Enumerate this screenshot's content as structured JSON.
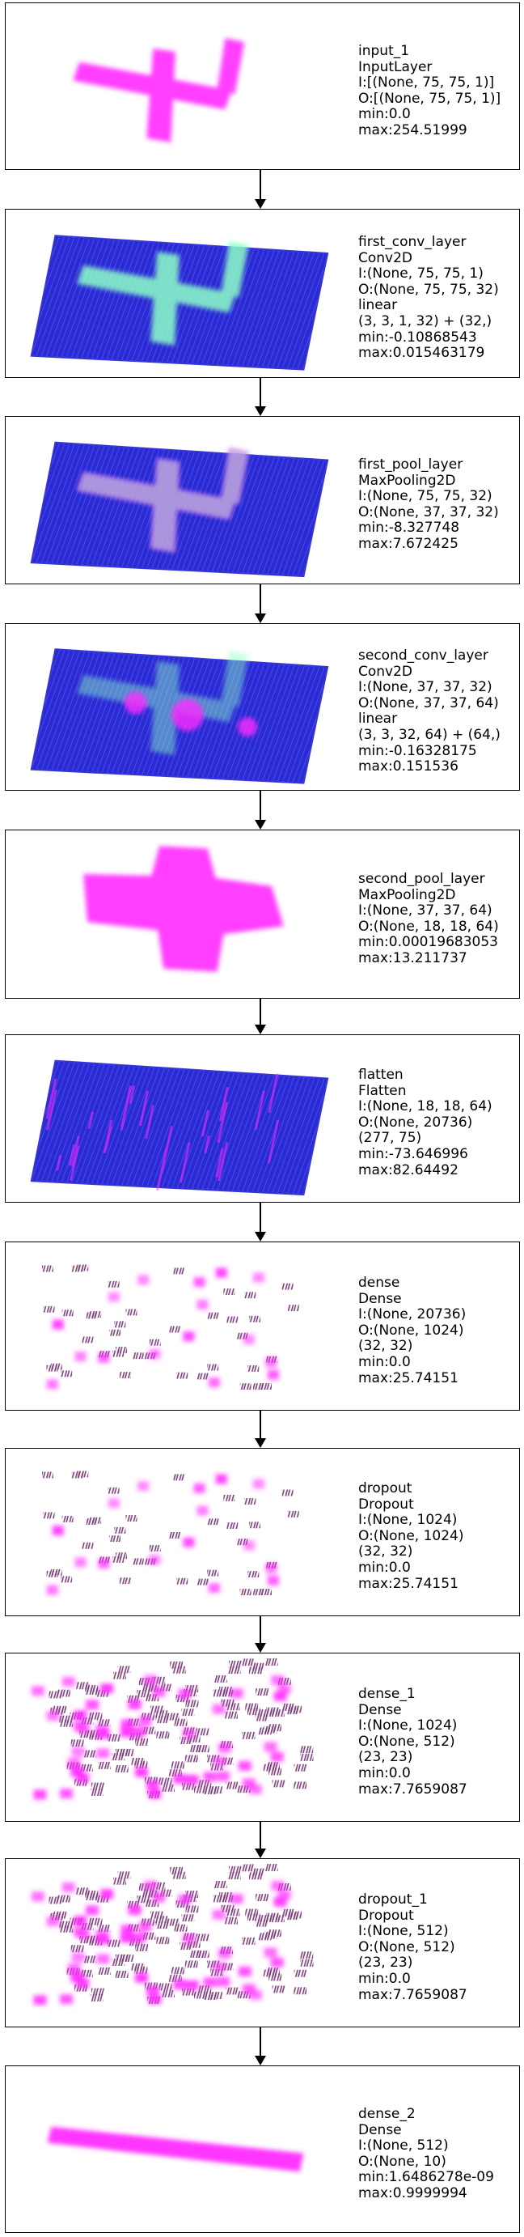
{
  "diagram_title": "",
  "colors": {
    "magenta": "#ff2bff",
    "blue": "#2a2ad2",
    "green": "#8cffc8",
    "border": "#000000"
  },
  "layers": [
    {
      "name": "input_1",
      "type": "InputLayer",
      "lines": [
        "I:[(None, 75, 75, 1)]",
        "O:[(None, 75, 75, 1)]",
        "min:0.0",
        "max:254.51999"
      ],
      "viz": "cross-magenta"
    },
    {
      "name": "first_conv_layer",
      "type": "Conv2D",
      "lines": [
        "I:(None, 75, 75, 1)",
        "O:(None, 75, 75, 32)",
        "linear",
        "(3, 3, 1, 32) + (32,)",
        "min:-0.10868543",
        "max:0.015463179"
      ],
      "viz": "plane-green"
    },
    {
      "name": "first_pool_layer",
      "type": "MaxPooling2D",
      "lines": [
        "I:(None, 75, 75, 32)",
        "O:(None, 37, 37, 32)",
        "min:-8.327748",
        "max:7.672425"
      ],
      "viz": "plane-magenta"
    },
    {
      "name": "second_conv_layer",
      "type": "Conv2D",
      "lines": [
        "I:(None, 37, 37, 32)",
        "O:(None, 37, 37, 64)",
        "linear",
        "(3, 3, 32, 64) + (64,)",
        "min:-0.16328175",
        "max:0.151536"
      ],
      "viz": "plane-mixed"
    },
    {
      "name": "second_pool_layer",
      "type": "MaxPooling2D",
      "lines": [
        "I:(None, 37, 37, 64)",
        "O:(None, 18, 18, 64)",
        "min:0.00019683053",
        "max:13.211737"
      ],
      "viz": "blob-magenta"
    },
    {
      "name": "flatten",
      "type": "Flatten",
      "lines": [
        "I:(None, 18, 18, 64)",
        "O:(None, 20736)",
        "(277, 75)",
        "min:-73.646996",
        "max:82.64492"
      ],
      "viz": "plane-stripes"
    },
    {
      "name": "dense",
      "type": "Dense",
      "lines": [
        "I:(None, 20736)",
        "O:(None, 1024)",
        "(32, 32)",
        "min:0.0",
        "max:25.74151"
      ],
      "viz": "sparse"
    },
    {
      "name": "dropout",
      "type": "Dropout",
      "lines": [
        "I:(None, 1024)",
        "O:(None, 1024)",
        "(32, 32)",
        "min:0.0",
        "max:25.74151"
      ],
      "viz": "sparse"
    },
    {
      "name": "dense_1",
      "type": "Dense",
      "lines": [
        "I:(None, 1024)",
        "O:(None, 512)",
        "(23, 23)",
        "min:0.0",
        "max:7.7659087"
      ],
      "viz": "dense-grid"
    },
    {
      "name": "dropout_1",
      "type": "Dropout",
      "lines": [
        "I:(None, 512)",
        "O:(None, 512)",
        "(23, 23)",
        "min:0.0",
        "max:7.7659087"
      ],
      "viz": "dense-grid"
    },
    {
      "name": "dense_2",
      "type": "Dense",
      "lines": [
        "I:(None, 512)",
        "O:(None, 10)",
        "max:0.9999994"
      ],
      "extra_min": "min:1.6486278e-09",
      "viz": "bar"
    }
  ]
}
